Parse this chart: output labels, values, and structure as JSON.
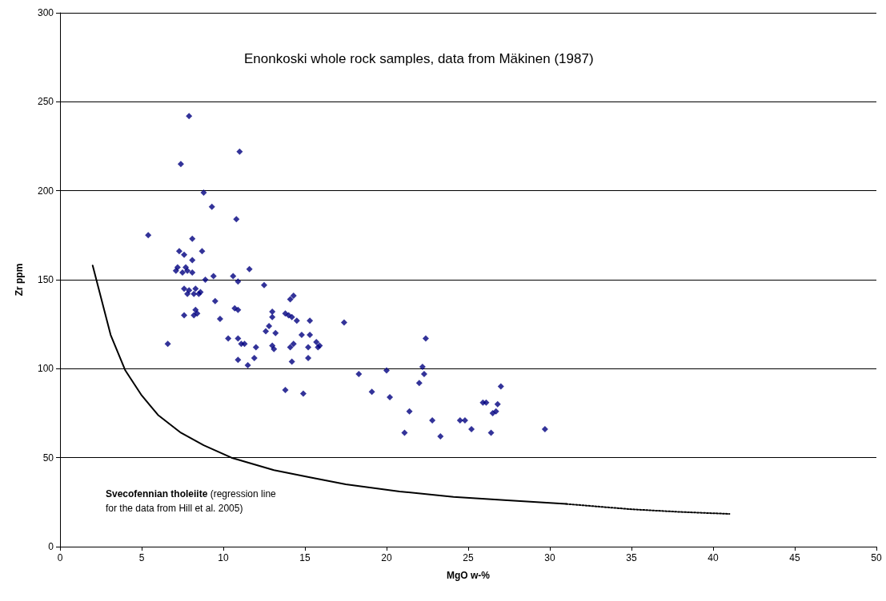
{
  "chart_data": {
    "type": "scatter",
    "title": "Enonkoski whole rock samples, data from Mäkinen (1987)",
    "xlabel": "MgO w-%",
    "ylabel": "Zr ppm",
    "xlim": [
      0,
      50
    ],
    "xticks": [
      0,
      5,
      10,
      15,
      20,
      25,
      30,
      35,
      40,
      45,
      50
    ],
    "ylim": [
      0,
      300
    ],
    "yticks": [
      0,
      50,
      100,
      150,
      200,
      250,
      300
    ],
    "grid": "y",
    "marker": "diamond",
    "annotations": [
      "Svecofennian tholeiite (regression line\nfor the data from Hill et al. 2005)"
    ],
    "series": [
      {
        "color": "#000080",
        "x": [
          5.4,
          7.9,
          7.4,
          11.0,
          8.8,
          9.3,
          10.8,
          8.1,
          7.3,
          8.7,
          7.6,
          8.1,
          7.2,
          7.7,
          7.1,
          7.5,
          7.8,
          8.1,
          8.9,
          9.4,
          10.6,
          10.9,
          11.6,
          12.5,
          7.6,
          7.9,
          8.3,
          8.6,
          7.8,
          8.2,
          8.5,
          7.6,
          8.3,
          8.2,
          8.4,
          9.5,
          9.8,
          10.3,
          10.7,
          10.9,
          10.9,
          11.1,
          11.3,
          10.9,
          11.5,
          11.9,
          12.0,
          12.6,
          12.8,
          13.0,
          13.0,
          13.2,
          13.0,
          13.1,
          13.8,
          14.0,
          14.1,
          14.3,
          14.2,
          14.5,
          14.3,
          14.1,
          14.2,
          14.8,
          15.3,
          15.3,
          15.2,
          15.2,
          15.7,
          15.8,
          15.9,
          13.8,
          14.9,
          17.4,
          18.3,
          20.0,
          19.1,
          20.2,
          22.2,
          22.3,
          22.0,
          22.4,
          21.4,
          21.1,
          22.8,
          23.3,
          24.5,
          24.8,
          25.2,
          25.9,
          26.1,
          26.8,
          26.5,
          26.7,
          26.4,
          27.0,
          29.7,
          6.6
        ],
        "values": [
          175,
          242,
          215,
          222,
          199,
          191,
          184,
          173,
          166,
          166,
          164,
          161,
          157,
          157,
          155,
          154,
          155,
          154,
          150,
          152,
          152,
          149,
          156,
          147,
          145,
          144,
          145,
          143,
          142,
          142,
          142,
          130,
          133,
          130,
          131,
          138,
          128,
          117,
          134,
          133,
          117,
          114,
          114,
          105,
          102,
          106,
          112,
          121,
          124,
          129,
          132,
          120,
          113,
          111,
          131,
          130,
          139,
          141,
          129,
          127,
          114,
          112,
          104,
          119,
          127,
          119,
          112,
          106,
          115,
          112,
          113,
          88,
          86,
          126,
          97,
          99,
          87,
          84,
          101,
          97,
          92,
          117,
          76,
          64,
          71,
          62,
          71,
          71,
          66,
          81,
          81,
          80,
          75,
          76,
          64,
          90,
          66,
          114
        ]
      },
      {
        "type": "line",
        "color": "#000000",
        "marker": "none",
        "line_style": "solid",
        "x": [
          2.0,
          3.1,
          4.0,
          5.0,
          6.0,
          7.4,
          8.8,
          10.5,
          13.1,
          15.3,
          17.5,
          20.8,
          24.1,
          27.4,
          31.0
        ],
        "values": [
          158,
          119,
          99,
          85,
          74,
          64,
          57,
          50,
          43,
          39,
          35,
          31,
          28,
          26,
          24
        ]
      },
      {
        "type": "line",
        "color": "#000000",
        "marker": "none",
        "line_style": "dotted",
        "x": [
          31.0,
          35.0,
          38.0,
          41.0
        ],
        "values": [
          24,
          21,
          19.5,
          18.4
        ]
      }
    ]
  }
}
